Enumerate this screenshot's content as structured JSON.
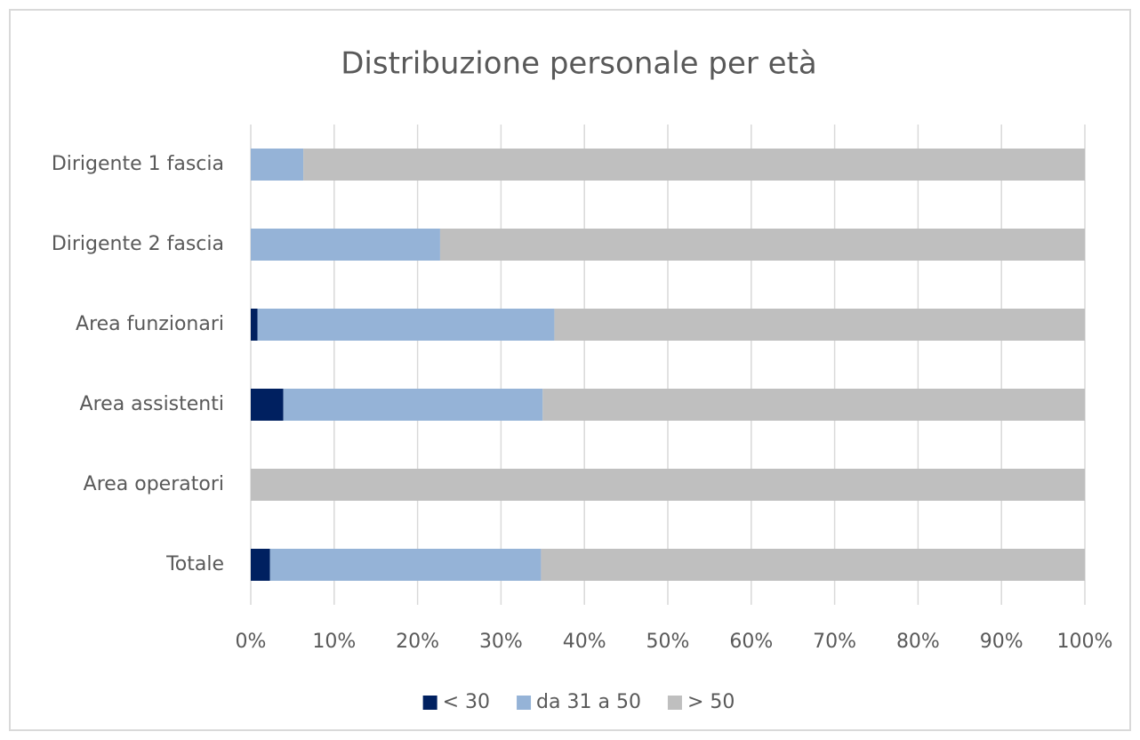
{
  "chart_data": {
    "type": "stacked_bar_horizontal",
    "title": "Distribuzione personale per età",
    "categories": [
      "Dirigente 1 fascia",
      "Dirigente 2 fascia",
      "Area funzionari",
      "Area assistenti",
      "Area operatori",
      "Totale"
    ],
    "series": [
      {
        "name": "< 30",
        "color": "#002060",
        "values": [
          0,
          0,
          0.8,
          3.9,
          0,
          2.3
        ]
      },
      {
        "name": "da 31 a 50",
        "color": "#95b3d7",
        "values": [
          6.3,
          22.7,
          35.6,
          31.1,
          0,
          32.5
        ]
      },
      {
        "name": "> 50",
        "color": "#bfbfbf",
        "values": [
          93.7,
          77.3,
          63.6,
          65.0,
          100,
          65.2
        ]
      }
    ],
    "xlim": [
      0,
      100
    ],
    "xticks": [
      {
        "value": 0,
        "label": "0%"
      },
      {
        "value": 10,
        "label": "10%"
      },
      {
        "value": 20,
        "label": "20%"
      },
      {
        "value": 30,
        "label": "30%"
      },
      {
        "value": 40,
        "label": "40%"
      },
      {
        "value": 50,
        "label": "50%"
      },
      {
        "value": 60,
        "label": "60%"
      },
      {
        "value": 70,
        "label": "70%"
      },
      {
        "value": 80,
        "label": "80%"
      },
      {
        "value": 90,
        "label": "90%"
      },
      {
        "value": 100,
        "label": "100%"
      }
    ],
    "grid": true,
    "legend": "bottom"
  }
}
